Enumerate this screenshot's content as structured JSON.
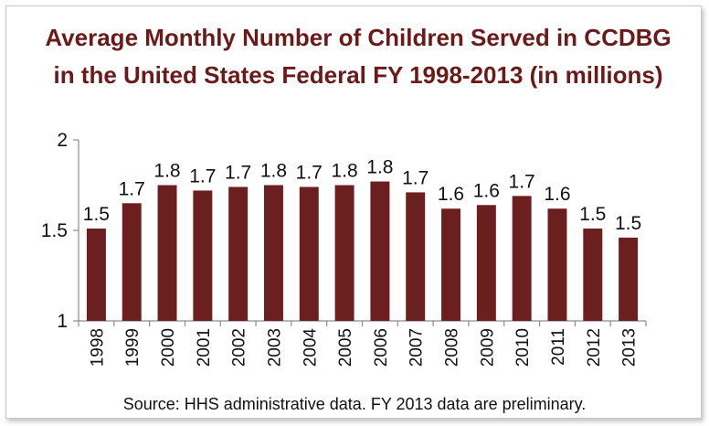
{
  "chart_data": {
    "type": "bar",
    "title": "Average Monthly Number of Children Served in CCDBG in the United States Federal FY 1998-2013 (in millions)",
    "categories": [
      "1998",
      "1999",
      "2000",
      "2001",
      "2002",
      "2003",
      "2004",
      "2005",
      "2006",
      "2007",
      "2008",
      "2009",
      "2010",
      "2011",
      "2012",
      "2013"
    ],
    "values": [
      1.51,
      1.65,
      1.75,
      1.72,
      1.74,
      1.75,
      1.74,
      1.75,
      1.77,
      1.71,
      1.62,
      1.64,
      1.69,
      1.62,
      1.51,
      1.46
    ],
    "data_labels": [
      "1.5",
      "1.7",
      "1.8",
      "1.7",
      "1.7",
      "1.8",
      "1.7",
      "1.8",
      "1.8",
      "1.7",
      "1.6",
      "1.6",
      "1.7",
      "1.6",
      "1.5",
      "1.5"
    ],
    "ylim": [
      1,
      2
    ],
    "yticks": [
      1,
      1.5,
      2
    ],
    "ytick_labels": [
      "1",
      "1.5",
      "2"
    ],
    "xlabel": "",
    "ylabel": "",
    "grid": false,
    "bar_color": "#6b1f1f",
    "title_color": "#6b1a1a",
    "source": "Source: HHS administrative data.  FY 2013 data are preliminary."
  }
}
